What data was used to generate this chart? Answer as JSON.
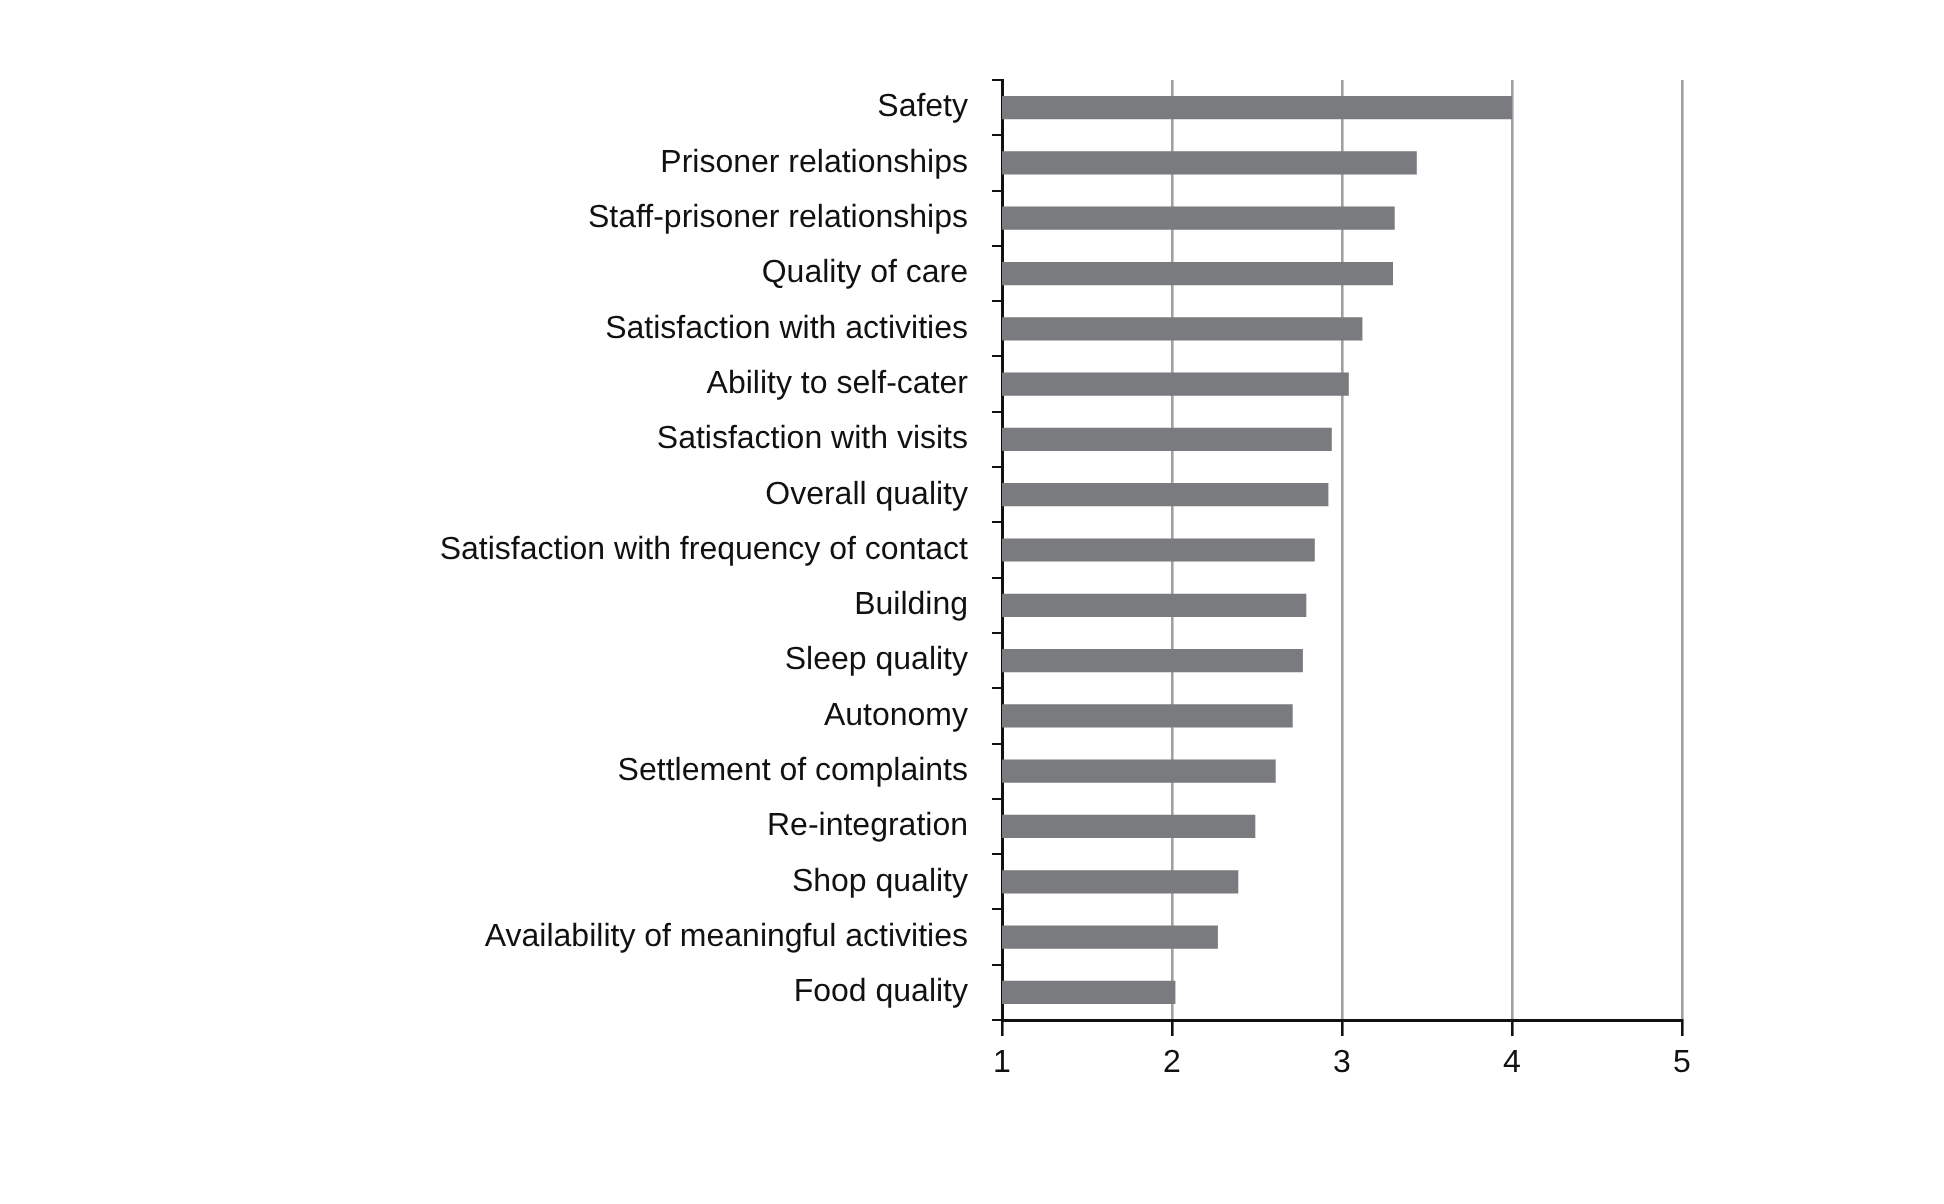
{
  "chart_data": {
    "type": "bar",
    "orientation": "horizontal",
    "categories": [
      "Safety",
      "Prisoner relationships",
      "Staff-prisoner relationships",
      "Quality of care",
      "Satisfaction with activities",
      "Ability to self-cater",
      "Satisfaction with visits",
      "Overall quality",
      "Satisfaction with frequency of contact",
      "Building",
      "Sleep quality",
      "Autonomy",
      "Settlement of complaints",
      "Re-integration",
      "Shop quality",
      "Availability of meaningful activities",
      "Food quality"
    ],
    "values": [
      4.0,
      3.44,
      3.31,
      3.3,
      3.12,
      3.04,
      2.94,
      2.92,
      2.84,
      2.79,
      2.77,
      2.71,
      2.61,
      2.49,
      2.39,
      2.27,
      2.02
    ],
    "color": "#7a7b7e",
    "xlim": [
      1,
      5
    ],
    "xticks": [
      1,
      2,
      3,
      4,
      5
    ],
    "grid": "x",
    "legend": false
  }
}
